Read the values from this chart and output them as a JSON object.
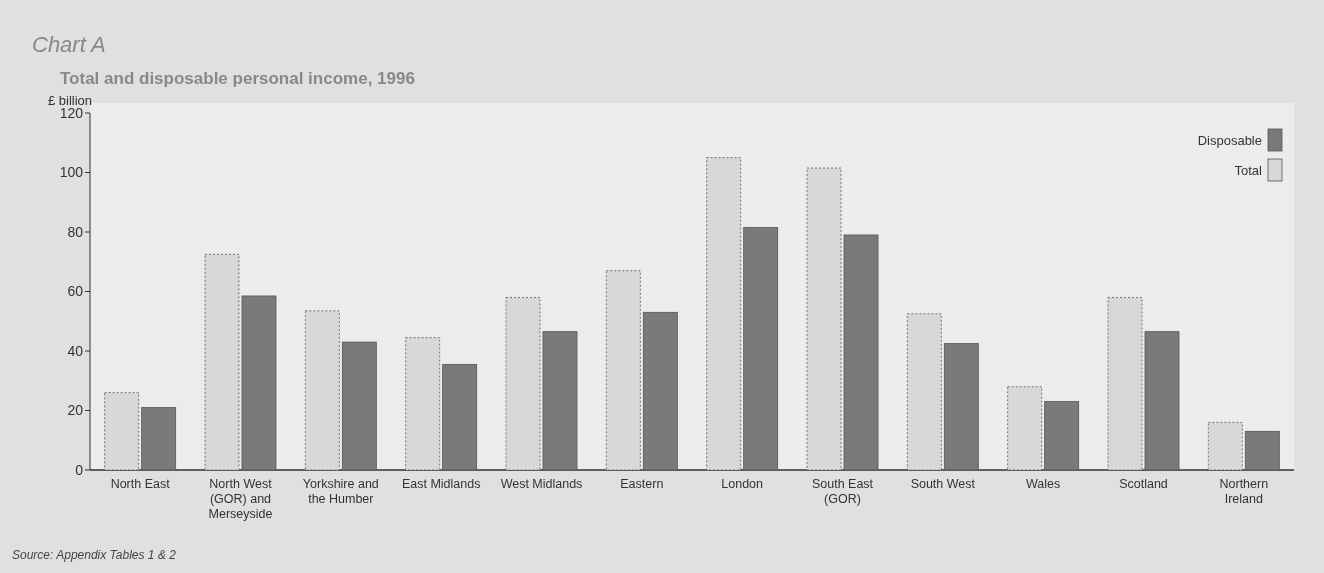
{
  "chart_data": {
    "type": "bar",
    "title": "Chart A",
    "subtitle": "Total and disposable personal income, 1996",
    "ylabel": "£ billion",
    "categories": [
      "North East",
      "North West (GOR) and Merseyside",
      "Yorkshire and the Humber",
      "East Midlands",
      "West Midlands",
      "Eastern",
      "London",
      "South East (GOR)",
      "South West",
      "Wales",
      "Scotland",
      "Northern Ireland"
    ],
    "series": [
      {
        "name": "Total",
        "color": "#d8d8d8",
        "values": [
          26,
          72.5,
          53.5,
          44.5,
          58,
          67,
          105,
          101.5,
          52.5,
          28,
          58,
          16
        ]
      },
      {
        "name": "Disposable",
        "color": "#7a7a7a",
        "values": [
          21,
          58.5,
          43,
          35.5,
          46.5,
          53,
          81.5,
          79,
          42.5,
          23,
          46.5,
          13
        ]
      }
    ],
    "ylim": [
      0,
      120
    ],
    "yticks": [
      0,
      20,
      40,
      60,
      80,
      100,
      120
    ],
    "legend": "top right",
    "annotations": [
      "Source: Appendix Tables 1 & 2"
    ]
  }
}
